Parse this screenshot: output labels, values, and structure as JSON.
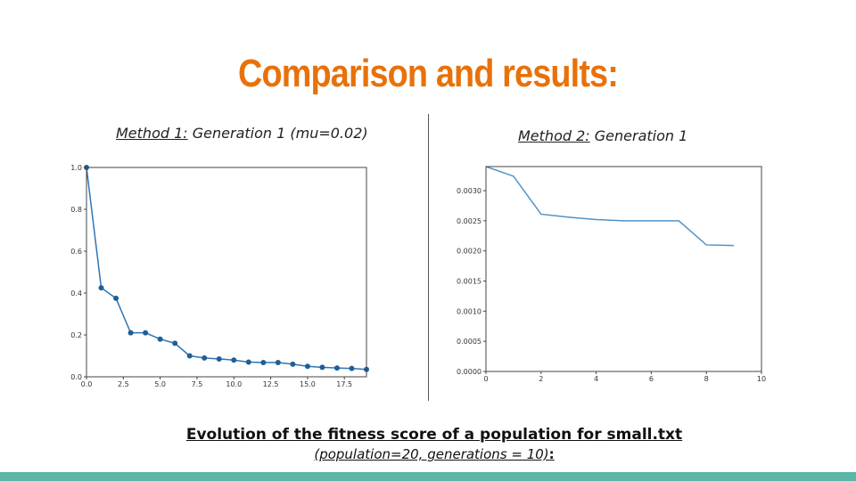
{
  "slide": {
    "title": "Comparison and results:",
    "left_caption_method": "Method 1:",
    "left_caption_rest": " Generation 1 (mu=0.02)",
    "right_caption_method": "Method 2:",
    "right_caption_rest": " Generation 1",
    "bottom_title": "Evolution of the fitness score of a population for small.txt",
    "bottom_subtitle": "(population=20, generations = 10)",
    "bottom_colon": ":",
    "accent_color": "#e8710a",
    "bar_color": "#5bb6a8"
  },
  "chart_data": [
    {
      "type": "line",
      "markers": true,
      "color": "#2e75b6",
      "x": [
        0,
        1,
        2,
        3,
        4,
        5,
        6,
        7,
        8,
        9,
        10,
        11,
        12,
        13,
        14,
        15,
        16,
        17,
        18,
        19
      ],
      "y": [
        1.0,
        0.425,
        0.375,
        0.21,
        0.21,
        0.18,
        0.16,
        0.1,
        0.09,
        0.085,
        0.08,
        0.07,
        0.068,
        0.068,
        0.06,
        0.05,
        0.045,
        0.042,
        0.04,
        0.035
      ],
      "xlim": [
        0,
        19
      ],
      "ylim": [
        0,
        1.0
      ],
      "xticks": [
        "0.0",
        "2.5",
        "5.0",
        "7.5",
        "10.0",
        "12.5",
        "15.0",
        "17.5"
      ],
      "xtick_values": [
        0,
        2.5,
        5,
        7.5,
        10,
        12.5,
        15,
        17.5
      ],
      "yticks": [
        "0.0",
        "0.2",
        "0.4",
        "0.6",
        "0.8",
        "1.0"
      ],
      "ytick_values": [
        0,
        0.2,
        0.4,
        0.6,
        0.8,
        1.0
      ],
      "xlabel": "",
      "ylabel": "",
      "title": "",
      "grid": false
    },
    {
      "type": "line",
      "markers": false,
      "color": "#4f93c6",
      "x": [
        0,
        1,
        2,
        3,
        4,
        5,
        6,
        7,
        8,
        9
      ],
      "y": [
        0.0034,
        0.00324,
        0.00261,
        0.00256,
        0.00252,
        0.0025,
        0.0025,
        0.0025,
        0.0021,
        0.00209
      ],
      "xlim": [
        0,
        10
      ],
      "ylim": [
        0,
        0.0034
      ],
      "xticks": [
        "0",
        "2",
        "4",
        "6",
        "8",
        "10"
      ],
      "xtick_values": [
        0,
        2,
        4,
        6,
        8,
        10
      ],
      "yticks": [
        "0.0000",
        "0.0005",
        "0.0010",
        "0.0015",
        "0.0020",
        "0.0025",
        "0.0030"
      ],
      "ytick_values": [
        0,
        0.0005,
        0.001,
        0.0015,
        0.002,
        0.0025,
        0.003
      ],
      "xlabel": "",
      "ylabel": "",
      "title": "",
      "grid": false
    }
  ]
}
